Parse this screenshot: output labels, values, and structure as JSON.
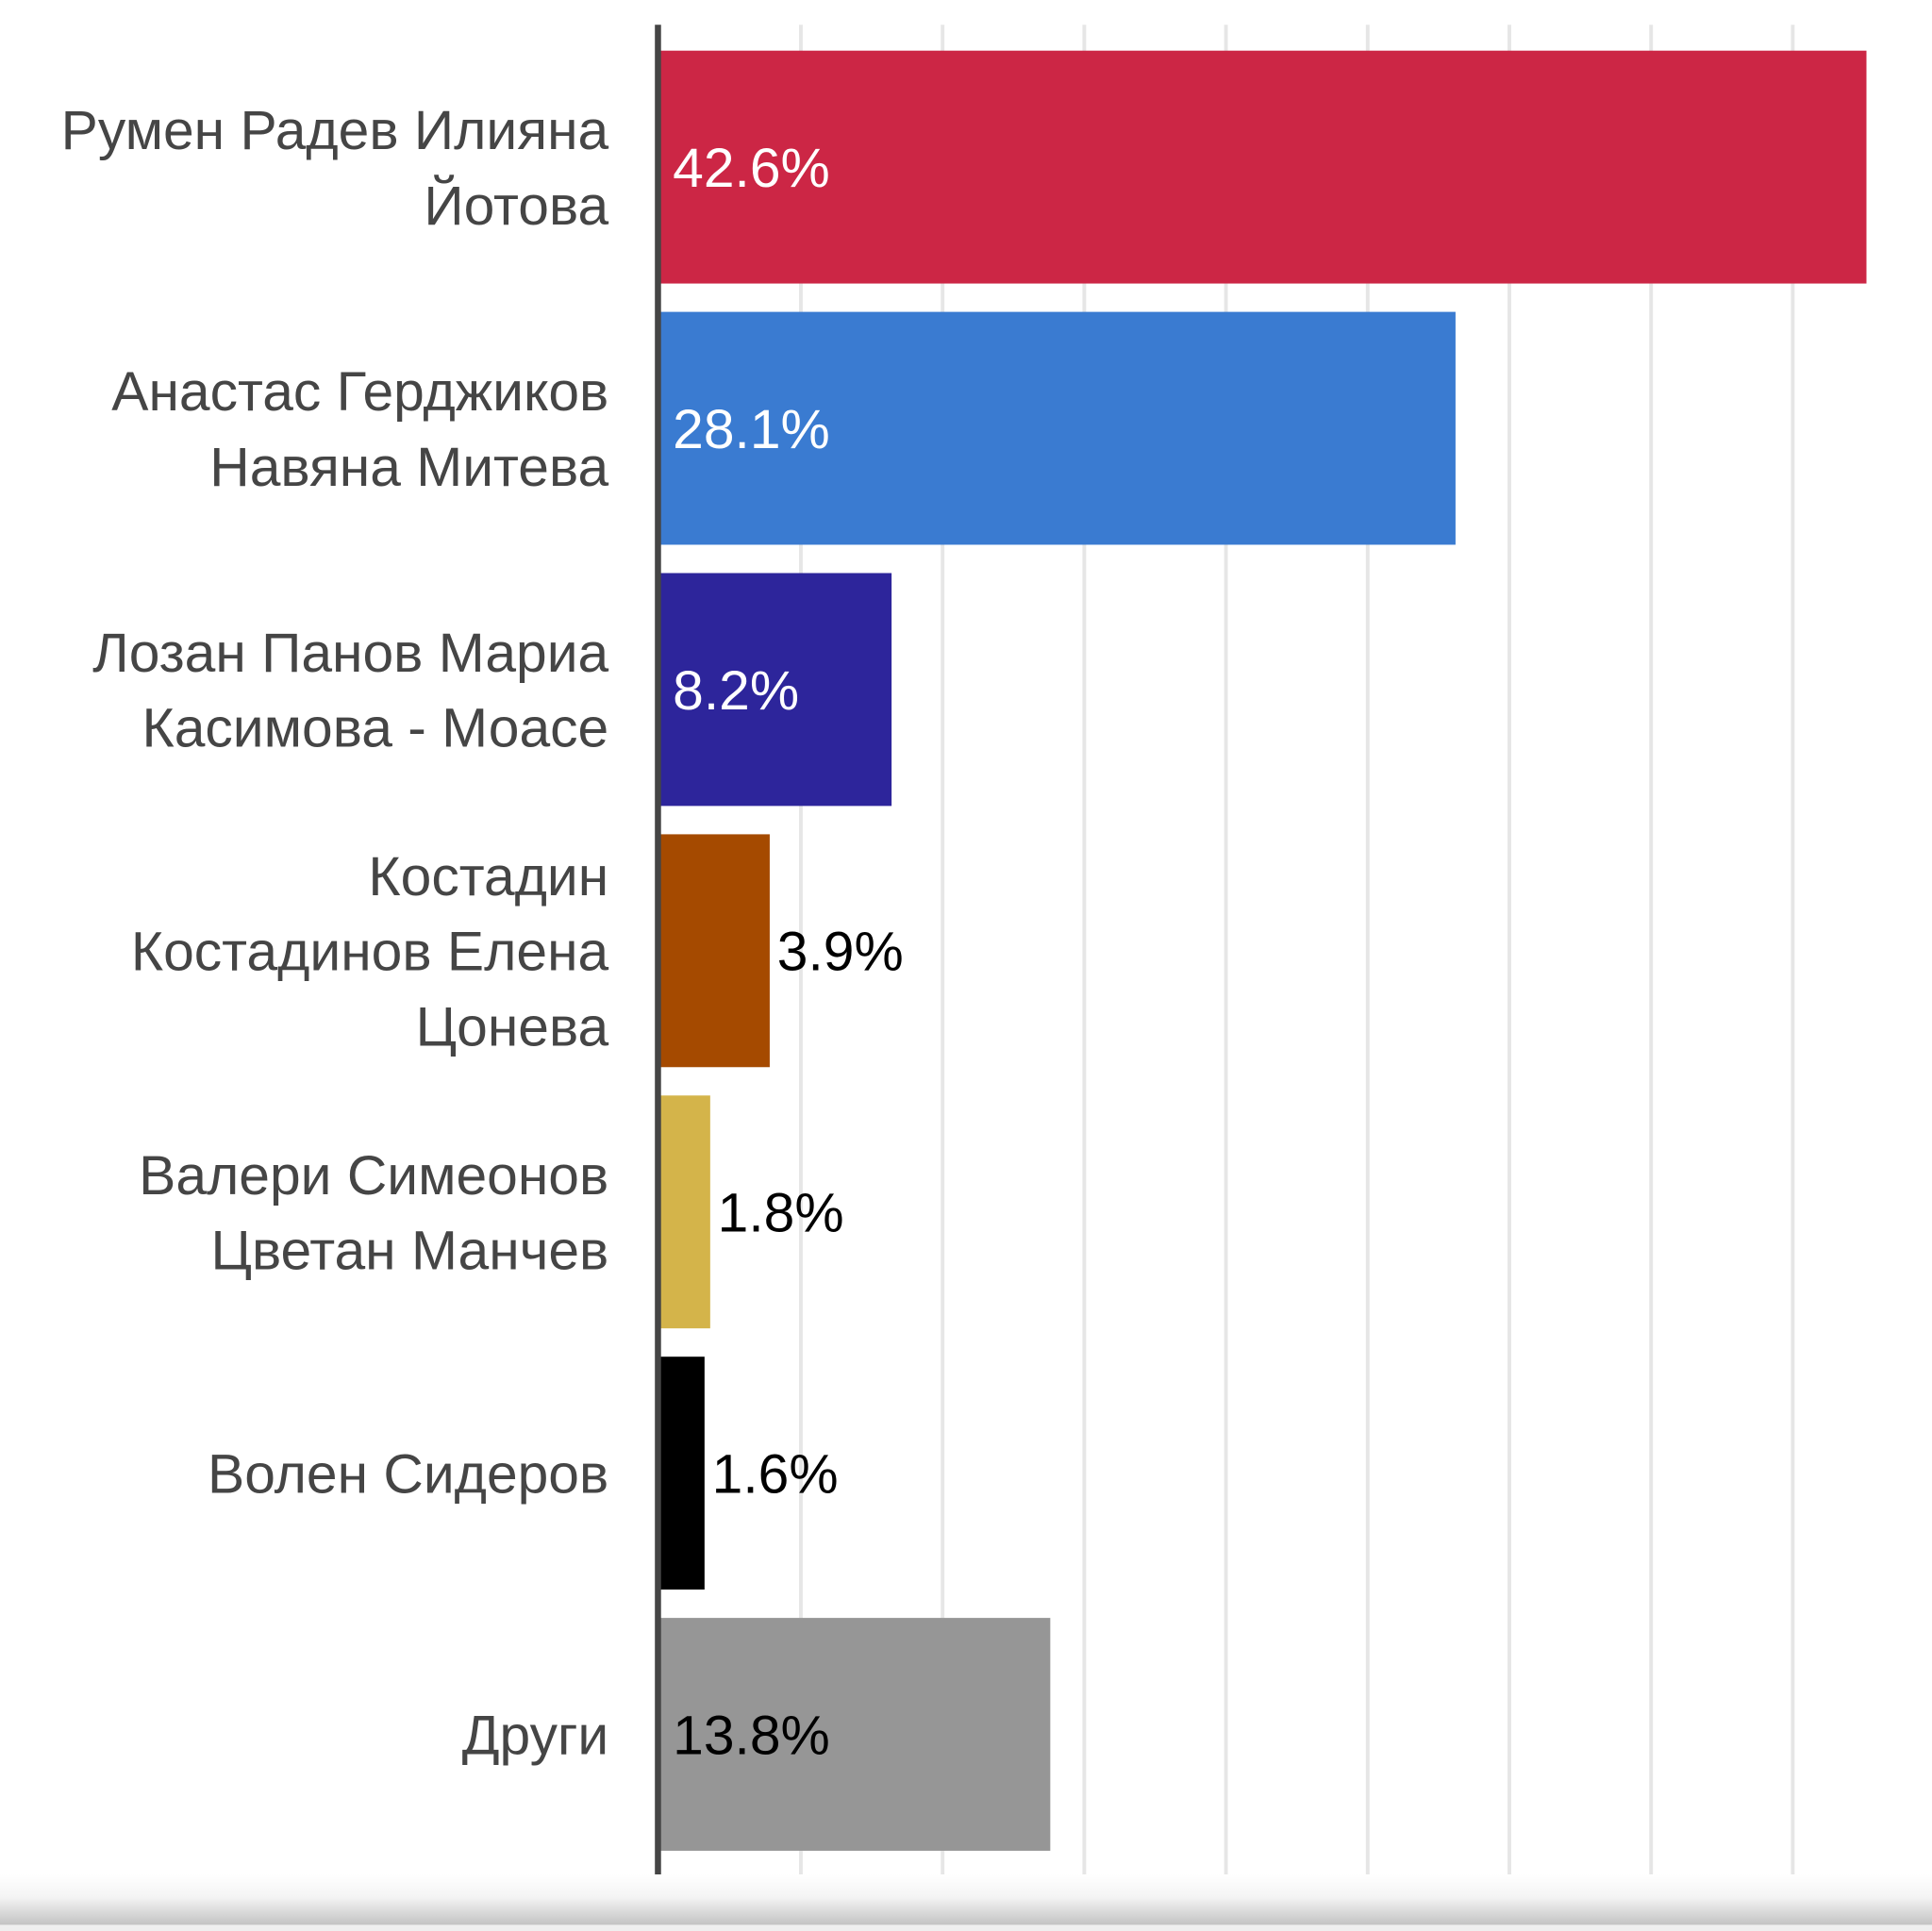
{
  "chart_data": {
    "type": "bar",
    "orientation": "horizontal",
    "categories": [
      [
        "Румен Радев Илияна",
        "Йотова"
      ],
      [
        "Анастас Герджиков",
        "Навяна Митева"
      ],
      [
        "Лозан Панов Мариа",
        "Касимова - Моасе"
      ],
      [
        "Костадин",
        "Костадинов Елена",
        "Цонева"
      ],
      [
        "Валери Симеонов",
        "Цветан Манчев"
      ],
      [
        "Волен Сидеров"
      ],
      [
        "Други"
      ]
    ],
    "values": [
      42.6,
      28.1,
      8.2,
      3.9,
      1.8,
      1.6,
      13.8
    ],
    "data_labels": [
      "42.6%",
      "28.1%",
      "8.2%",
      "3.9%",
      "1.8%",
      "1.6%",
      "13.8%"
    ],
    "colors": [
      "#cc2645",
      "#3a7bd1",
      "#2d259b",
      "#a54a00",
      "#d4b44a",
      "#000000",
      "#969696"
    ],
    "label_colors": [
      "#ffffff",
      "#ffffff",
      "#ffffff",
      "#000000",
      "#000000",
      "#000000",
      "#000000"
    ],
    "xlim": [
      0,
      45
    ],
    "grid_step": 5,
    "grid": true,
    "axis_ticks_shown": false,
    "title": "",
    "xlabel": "",
    "ylabel": ""
  }
}
